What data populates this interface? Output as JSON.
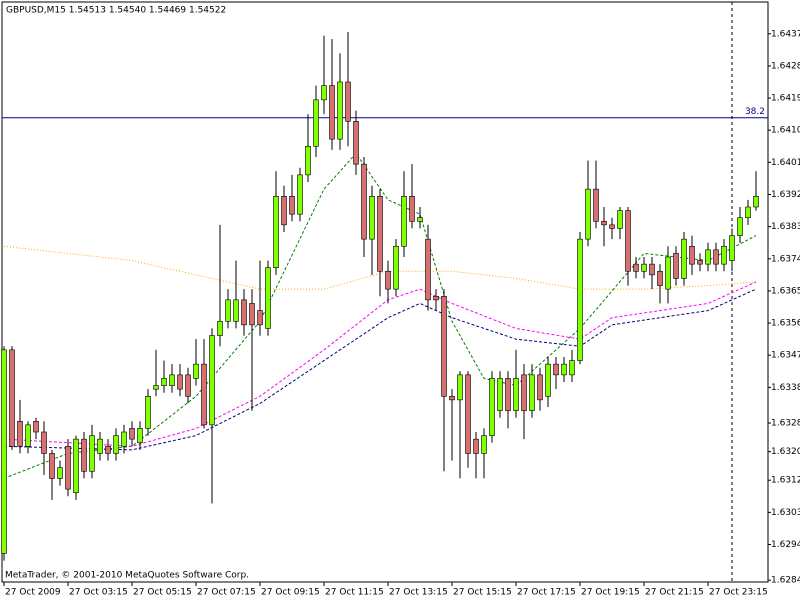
{
  "chart_data": {
    "type": "candlestick",
    "title": "GBPUSD,M15  1.54513 1.54540 1.54469 1.54522",
    "footer": "MetaTrader, © 2001-2010 MetaQuotes Software Corp.",
    "up_color": "#80ff00",
    "down_color": "#d87070",
    "open": [
      1.6292,
      1.6349,
      1.6329,
      1.6322,
      1.6329,
      1.6326,
      1.632,
      1.6313,
      1.6322,
      1.6309,
      1.6324,
      1.6315,
      1.632,
      1.6322,
      1.632,
      1.6322,
      1.6327,
      1.6323,
      1.6327,
      1.6338,
      1.6339,
      1.6339,
      1.6342,
      1.6342,
      1.6341,
      1.6345,
      1.6328,
      1.6353,
      1.6357,
      1.6357,
      1.6363,
      1.6362,
      1.636,
      1.6355,
      1.6372,
      1.6392,
      1.6392,
      1.6387,
      1.6398,
      1.6406,
      1.6419,
      1.6423,
      1.6408,
      1.6424,
      1.6413,
      1.6401,
      1.638,
      1.6392,
      1.6371,
      1.6366,
      1.6378,
      1.6392,
      1.6385,
      1.638,
      1.6364,
      1.6364,
      1.6336,
      1.6335,
      1.6342,
      1.6324,
      1.632,
      1.6325,
      1.6332,
      1.6341,
      1.6332,
      1.6342,
      1.6332,
      1.6342,
      1.6336,
      1.6345,
      1.6342,
      1.6342,
      1.6346,
      1.638,
      1.6394,
      1.6385,
      1.6384,
      1.6383,
      1.6388,
      1.6373,
      1.6371,
      1.6373,
      1.6371,
      1.6366,
      1.6376,
      1.6369,
      1.6378,
      1.6374,
      1.6373,
      1.6377,
      1.6373,
      1.6374,
      1.6381,
      1.6386,
      1.6389
    ],
    "high": [
      1.635,
      1.635,
      1.6335,
      1.6329,
      1.633,
      1.6329,
      1.6321,
      1.6318,
      1.6324,
      1.6325,
      1.6326,
      1.6328,
      1.6326,
      1.6324,
      1.6327,
      1.6328,
      1.6329,
      1.6329,
      1.6338,
      1.6349,
      1.6346,
      1.6345,
      1.6345,
      1.6344,
      1.6352,
      1.6352,
      1.6355,
      1.6384,
      1.6366,
      1.6374,
      1.6366,
      1.6366,
      1.6374,
      1.6374,
      1.6399,
      1.6395,
      1.6398,
      1.64,
      1.6415,
      1.6423,
      1.6437,
      1.6436,
      1.6432,
      1.6438,
      1.6416,
      1.6403,
      1.6395,
      1.6394,
      1.6374,
      1.638,
      1.6399,
      1.6401,
      1.6389,
      1.6384,
      1.6366,
      1.6366,
      1.6338,
      1.6343,
      1.6343,
      1.6326,
      1.6327,
      1.6343,
      1.6343,
      1.6343,
      1.6349,
      1.6345,
      1.6345,
      1.6344,
      1.6347,
      1.6347,
      1.6347,
      1.6349,
      1.6382,
      1.6402,
      1.6402,
      1.6389,
      1.6386,
      1.6389,
      1.6389,
      1.6375,
      1.6375,
      1.6375,
      1.6373,
      1.6378,
      1.6378,
      1.6382,
      1.6381,
      1.6376,
      1.6379,
      1.6379,
      1.638,
      1.6383,
      1.6389,
      1.6391,
      1.6399
    ],
    "low": [
      1.629,
      1.6321,
      1.632,
      1.632,
      1.6324,
      1.6314,
      1.6307,
      1.6311,
      1.6308,
      1.6307,
      1.6313,
      1.6313,
      1.6318,
      1.6318,
      1.6318,
      1.632,
      1.6322,
      1.6321,
      1.6325,
      1.6336,
      1.6337,
      1.6337,
      1.6336,
      1.6334,
      1.6339,
      1.6327,
      1.6306,
      1.635,
      1.6355,
      1.6355,
      1.6353,
      1.6332,
      1.6353,
      1.6353,
      1.637,
      1.6382,
      1.6385,
      1.6385,
      1.6396,
      1.6403,
      1.6415,
      1.6405,
      1.6405,
      1.6406,
      1.6398,
      1.6375,
      1.637,
      1.6364,
      1.6362,
      1.6364,
      1.6375,
      1.6383,
      1.6383,
      1.636,
      1.636,
      1.6315,
      1.6318,
      1.6313,
      1.6316,
      1.6313,
      1.6313,
      1.6323,
      1.633,
      1.6327,
      1.633,
      1.6324,
      1.633,
      1.6332,
      1.6333,
      1.6338,
      1.634,
      1.634,
      1.6345,
      1.6378,
      1.6383,
      1.6378,
      1.638,
      1.638,
      1.6367,
      1.6369,
      1.6369,
      1.6366,
      1.6362,
      1.6362,
      1.6367,
      1.6367,
      1.637,
      1.6371,
      1.6371,
      1.6371,
      1.6371,
      1.6371,
      1.6379,
      1.6384,
      1.6388
    ],
    "close": [
      1.6349,
      1.6322,
      1.6322,
      1.6328,
      1.6326,
      1.632,
      1.6313,
      1.6316,
      1.631,
      1.6324,
      1.6315,
      1.6325,
      1.6324,
      1.632,
      1.6325,
      1.6326,
      1.6324,
      1.6327,
      1.6336,
      1.6339,
      1.6341,
      1.6342,
      1.6338,
      1.6336,
      1.6345,
      1.6328,
      1.6353,
      1.6357,
      1.6363,
      1.6363,
      1.6356,
      1.6356,
      1.6356,
      1.6372,
      1.6392,
      1.6384,
      1.6387,
      1.6398,
      1.6406,
      1.6419,
      1.6423,
      1.6408,
      1.6424,
      1.6413,
      1.6401,
      1.638,
      1.6392,
      1.6371,
      1.6366,
      1.6378,
      1.6392,
      1.6385,
      1.6386,
      1.6363,
      1.6363,
      1.6336,
      1.6335,
      1.6342,
      1.632,
      1.632,
      1.6325,
      1.6341,
      1.6341,
      1.6332,
      1.6341,
      1.6332,
      1.6342,
      1.6335,
      1.6345,
      1.6342,
      1.6345,
      1.6346,
      1.638,
      1.6394,
      1.6385,
      1.6384,
      1.6383,
      1.6388,
      1.6371,
      1.6371,
      1.6373,
      1.637,
      1.6367,
      1.6375,
      1.6369,
      1.638,
      1.6373,
      1.6373,
      1.6377,
      1.6373,
      1.6378,
      1.6381,
      1.6386,
      1.6389,
      1.6392
    ],
    "overlays": [
      {
        "color": "#008000",
        "style": "dashed",
        "x": [
          0,
          8,
          16,
          24,
          32,
          40,
          44,
          48,
          52,
          56,
          60,
          64,
          72,
          80,
          88,
          94
        ],
        "values": [
          1.6313,
          1.632,
          1.6322,
          1.6336,
          1.6357,
          1.6394,
          1.6404,
          1.6391,
          1.6387,
          1.6357,
          1.6341,
          1.6339,
          1.6355,
          1.6376,
          1.6374,
          1.6381
        ]
      },
      {
        "color": "#ffa500",
        "style": "dotted",
        "x": [
          0,
          16,
          32,
          40,
          48,
          56,
          64,
          72,
          80,
          88,
          94
        ],
        "values": [
          1.6378,
          1.6374,
          1.6366,
          1.6366,
          1.6371,
          1.6371,
          1.6369,
          1.6366,
          1.6366,
          1.6367,
          1.6368
        ]
      },
      {
        "color": "#ff00ff",
        "style": "dashed",
        "x": [
          0,
          16,
          24,
          32,
          40,
          48,
          52,
          56,
          64,
          72,
          76,
          88,
          94
        ],
        "values": [
          1.6324,
          1.6322,
          1.6327,
          1.6336,
          1.6349,
          1.6363,
          1.6366,
          1.6362,
          1.6355,
          1.6352,
          1.6358,
          1.6362,
          1.6368
        ]
      },
      {
        "color": "#000080",
        "style": "dashed",
        "x": [
          0,
          16,
          24,
          32,
          40,
          48,
          52,
          56,
          64,
          72,
          76,
          88,
          94
        ],
        "values": [
          1.6322,
          1.6321,
          1.6325,
          1.6334,
          1.6346,
          1.6358,
          1.6362,
          1.6358,
          1.6352,
          1.635,
          1.6356,
          1.636,
          1.6366
        ]
      }
    ],
    "hline": {
      "value": 1.6414,
      "label": "38.2",
      "color": "#000080"
    },
    "vline": 91,
    "xlim": [
      -0.25,
      95.5
    ],
    "ylim": [
      1.6284,
      1.64464
    ],
    "xticks": [
      {
        "value": 0,
        "label": "27 Oct 2009"
      },
      {
        "value": 8,
        "label": "27 Oct 03:15"
      },
      {
        "value": 16,
        "label": "27 Oct 05:15"
      },
      {
        "value": 24,
        "label": "27 Oct 07:15"
      },
      {
        "value": 32,
        "label": "27 Oct 09:15"
      },
      {
        "value": 40,
        "label": "27 Oct 11:15"
      },
      {
        "value": 48,
        "label": "27 Oct 13:15"
      },
      {
        "value": 56,
        "label": "27 Oct 15:15"
      },
      {
        "value": 64,
        "label": "27 Oct 17:15"
      },
      {
        "value": 72,
        "label": "27 Oct 19:15"
      },
      {
        "value": 80,
        "label": "27 Oct 21:15"
      },
      {
        "value": 88,
        "label": "27 Oct 23:15"
      }
    ],
    "yticks": [
      1.62845,
      1.62945,
      1.63035,
      1.63125,
      1.63205,
      1.63285,
      1.63385,
      1.63475,
      1.63565,
      1.63655,
      1.63745,
      1.63835,
      1.63925,
      1.64015,
      1.64105,
      1.64195,
      1.64285,
      1.64375
    ]
  }
}
